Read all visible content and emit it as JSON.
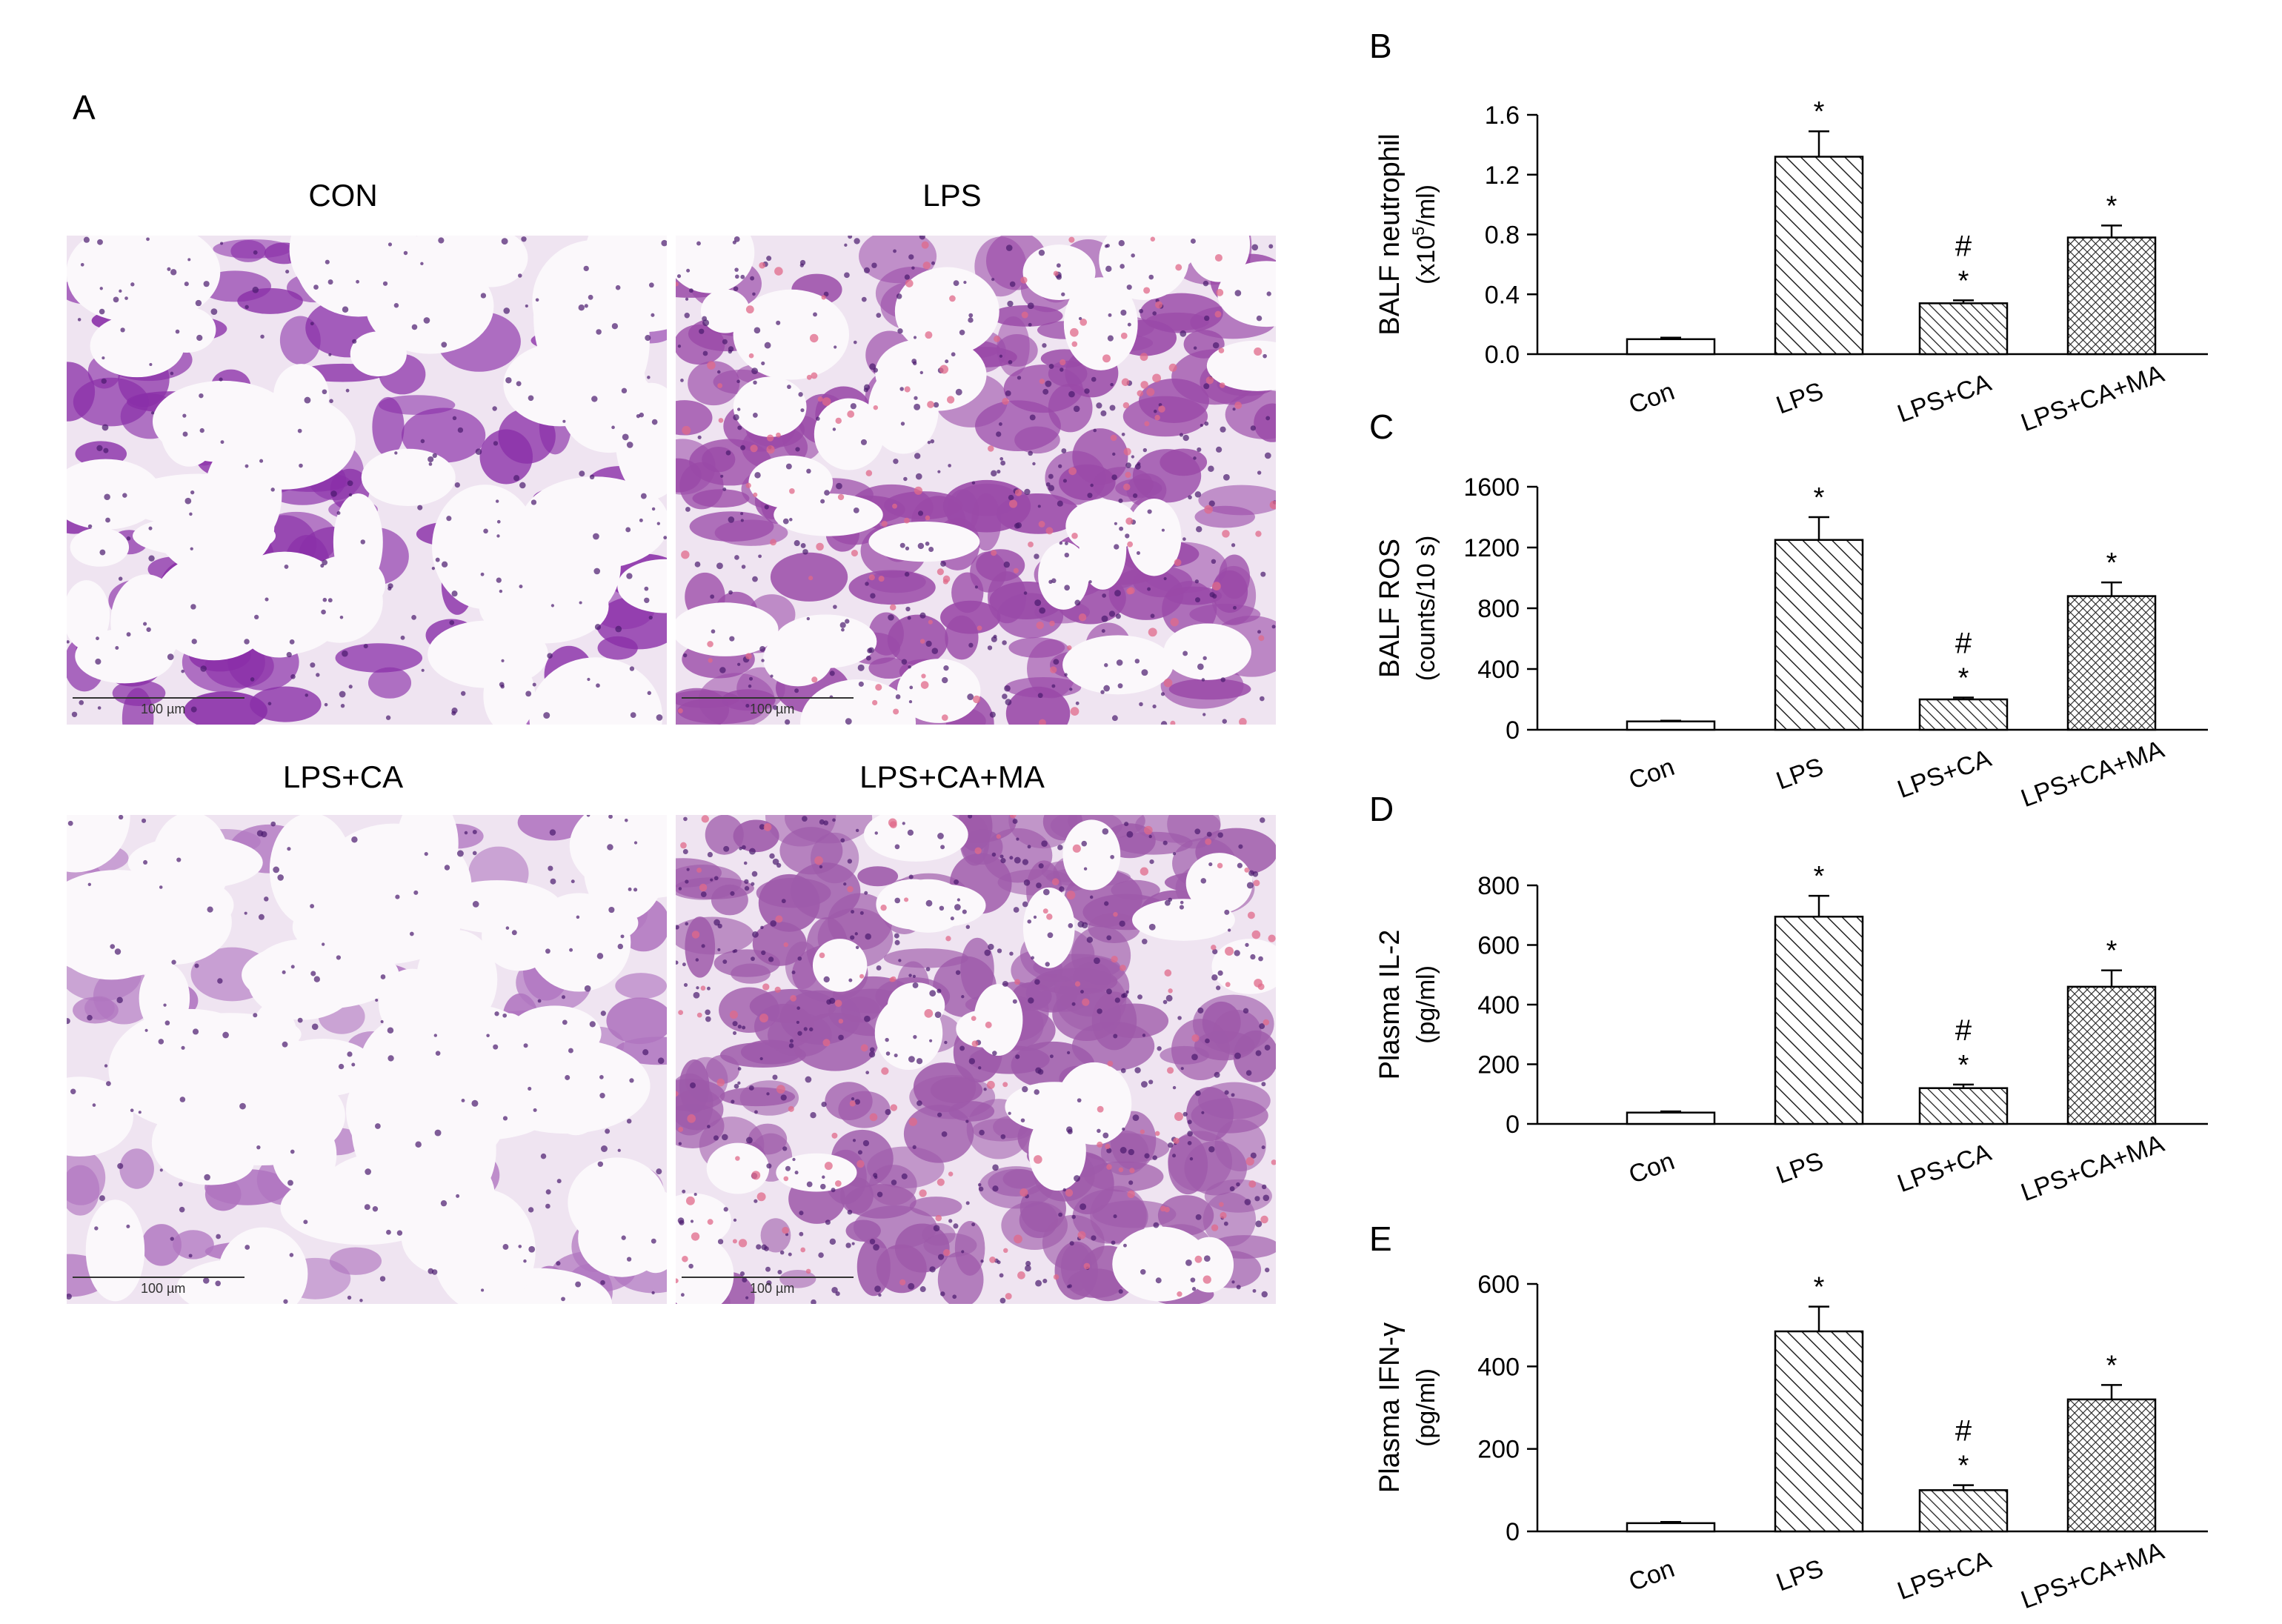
{
  "panel_a": {
    "letter": "A",
    "images": [
      {
        "title": "CON",
        "scale_label": "100 µm",
        "tissue": "pink-purple lung tissue",
        "color": "#8a2fa8"
      },
      {
        "title": "LPS",
        "scale_label": "100 µm",
        "tissue": "pink-purple lung tissue",
        "color": "#9a4aa8"
      },
      {
        "title": "LPS+CA",
        "scale_label": "100 µm",
        "tissue": "pink-purple lung tissue",
        "color": "#b075c0"
      },
      {
        "title": "LPS+CA+MA",
        "scale_label": "100 µm",
        "tissue": "pink-purple lung tissue",
        "color": "#9e5aaa"
      }
    ]
  },
  "chart_data": [
    {
      "letter": "B",
      "type": "bar",
      "ylabel_line1": "BALF neutrophil",
      "ylabel_line2_pre": "(x10",
      "ylabel_line2_sup": "5",
      "ylabel_line2_post": "/ml)",
      "categories": [
        "Con",
        "LPS",
        "LPS+CA",
        "LPS+CA+MA"
      ],
      "values": [
        0.1,
        1.32,
        0.34,
        0.78
      ],
      "errors": [
        0.01,
        0.17,
        0.02,
        0.08
      ],
      "ylim": [
        0,
        1.6
      ],
      "yticks": [
        "0.0",
        "0.4",
        "0.8",
        "1.2",
        "1.6"
      ],
      "marks": [
        "",
        "*",
        "*",
        "*"
      ],
      "hash_marks": [
        "",
        "",
        "#",
        ""
      ]
    },
    {
      "letter": "C",
      "type": "bar",
      "ylabel_line1": "BALF ROS",
      "ylabel_line2_pre": "(counts/10 s)",
      "ylabel_line2_sup": "",
      "ylabel_line2_post": "",
      "categories": [
        "Con",
        "LPS",
        "LPS+CA",
        "LPS+CA+MA"
      ],
      "values": [
        55,
        1250,
        200,
        880
      ],
      "errors": [
        5,
        150,
        12,
        90
      ],
      "ylim": [
        0,
        1600
      ],
      "yticks": [
        "0",
        "400",
        "800",
        "1200",
        "1600"
      ],
      "marks": [
        "",
        "*",
        "*",
        "*"
      ],
      "hash_marks": [
        "",
        "",
        "#",
        ""
      ]
    },
    {
      "letter": "D",
      "type": "bar",
      "ylabel_line1": "Plasma IL-2",
      "ylabel_line2_pre": "(pg/ml)",
      "ylabel_line2_sup": "",
      "ylabel_line2_post": "",
      "categories": [
        "Con",
        "LPS",
        "LPS+CA",
        "LPS+CA+MA"
      ],
      "values": [
        38,
        695,
        120,
        460
      ],
      "errors": [
        4,
        70,
        12,
        55
      ],
      "ylim": [
        0,
        800
      ],
      "yticks": [
        "0",
        "200",
        "400",
        "600",
        "800"
      ],
      "marks": [
        "",
        "*",
        "*",
        "*"
      ],
      "hash_marks": [
        "",
        "",
        "#",
        ""
      ]
    },
    {
      "letter": "E",
      "type": "bar",
      "ylabel_line1": "Plasma IFN-γ",
      "ylabel_line2_pre": "(pg/ml)",
      "ylabel_line2_sup": "",
      "ylabel_line2_post": "",
      "categories": [
        "Con",
        "LPS",
        "LPS+CA",
        "LPS+CA+MA"
      ],
      "values": [
        20,
        485,
        100,
        320
      ],
      "errors": [
        3,
        60,
        12,
        35
      ],
      "ylim": [
        0,
        600
      ],
      "yticks": [
        "0",
        "200",
        "400",
        "600"
      ],
      "marks": [
        "",
        "*",
        "*",
        "*"
      ],
      "hash_marks": [
        "",
        "",
        "#",
        ""
      ]
    }
  ]
}
